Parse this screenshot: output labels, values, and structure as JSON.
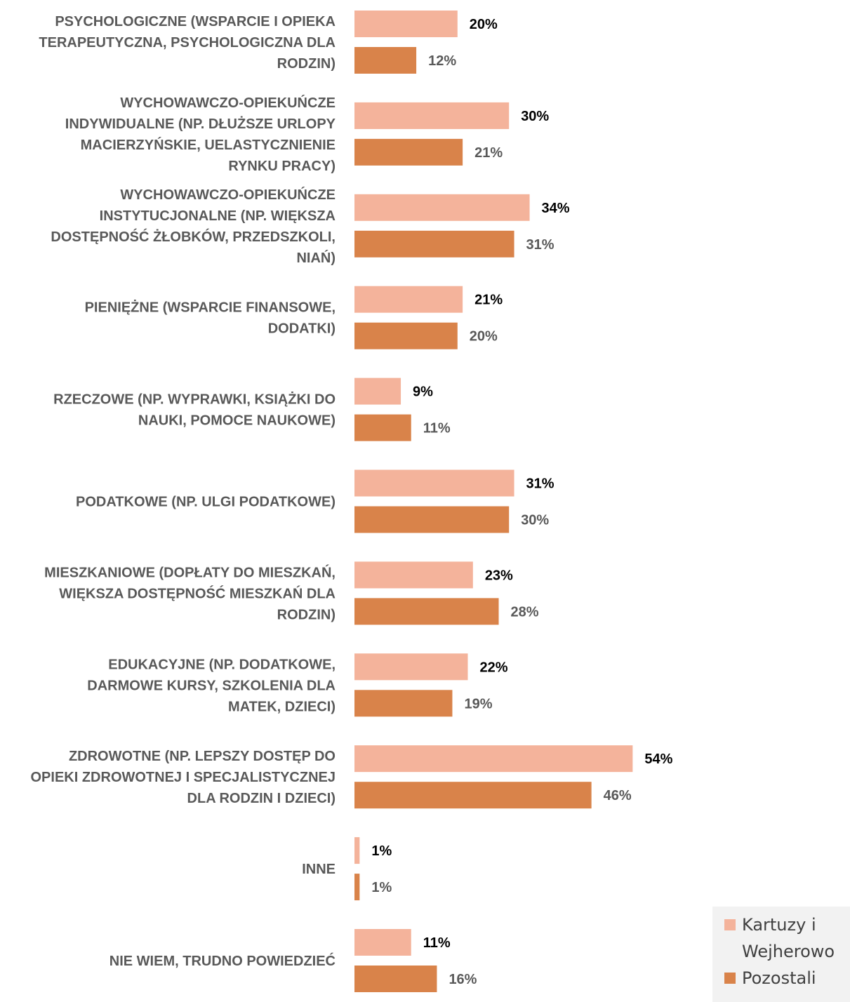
{
  "chart_data": {
    "type": "bar",
    "orientation": "horizontal",
    "categories": [
      [
        "PSYCHOLOGICZNE (WSPARCIE I OPIEKA",
        "TERAPEUTYCZNA, PSYCHOLOGICZNA DLA",
        "RODZIN)"
      ],
      [
        "WYCHOWAWCZO-OPIEKUŃCZE",
        "INDYWIDUALNE (NP. DŁUŻSZE URLOPY",
        "MACIERZYŃSKIE, UELASTYCZNIENIE",
        "RYNKU PRACY)"
      ],
      [
        "WYCHOWAWCZO-OPIEKUŃCZE",
        "INSTYTUCJONALNE (NP. WIĘKSZA",
        "DOSTĘPNOŚĆ ŻŁOBKÓW, PRZEDSZKOLI,",
        "NIAŃ)"
      ],
      [
        "PIENIĘŻNE (WSPARCIE FINANSOWE,",
        "DODATKI)"
      ],
      [
        "RZECZOWE (NP. WYPRAWKI, KSIĄŻKI DO",
        "NAUKI, POMOCE NAUKOWE)"
      ],
      [
        "PODATKOWE (NP. ULGI PODATKOWE)"
      ],
      [
        "MIESZKANIOWE (DOPŁATY DO MIESZKAŃ,",
        "WIĘKSZA DOSTĘPNOŚĆ MIESZKAŃ DLA",
        "RODZIN)"
      ],
      [
        "EDUKACYJNE (NP. DODATKOWE,",
        "DARMOWE KURSY, SZKOLENIA DLA",
        "MATEK, DZIECI)"
      ],
      [
        "ZDROWOTNE (NP. LEPSZY DOSTĘP DO",
        "OPIEKI ZDROWOTNEJ I SPECJALISTYCZNEJ",
        "DLA RODZIN I DZIECI)"
      ],
      [
        "INNE"
      ],
      [
        "NIE WIEM, TRUDNO POWIEDZIEĆ"
      ]
    ],
    "series": [
      {
        "name": "Kartuzy i Wejherowo",
        "legend_lines": [
          "Kartuzy i",
          "Wejherowo"
        ],
        "color": "#F4B39B",
        "label_color": "#000000",
        "values": [
          20,
          30,
          34,
          21,
          9,
          31,
          23,
          22,
          54,
          1,
          11
        ],
        "labels": [
          "20%",
          "30%",
          "34%",
          "21%",
          "9%",
          "31%",
          "23%",
          "22%",
          "54%",
          "1%",
          "11%"
        ]
      },
      {
        "name": "Pozostali",
        "legend_lines": [
          "Pozostali"
        ],
        "color": "#D9834A",
        "label_color": "#595959",
        "values": [
          12,
          21,
          31,
          20,
          11,
          30,
          28,
          19,
          46,
          1,
          16
        ],
        "labels": [
          "12%",
          "21%",
          "31%",
          "20%",
          "11%",
          "30%",
          "28%",
          "19%",
          "46%",
          "1%",
          "16%"
        ]
      }
    ],
    "value_unit": "%",
    "grid": false,
    "legend_position": "bottom-right",
    "legend_background": "#F2F2F2",
    "label_color": "#595959"
  }
}
